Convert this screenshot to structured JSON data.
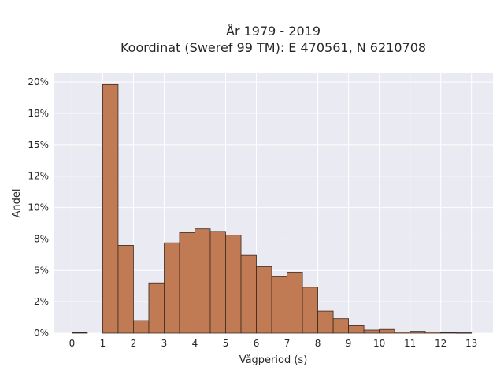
{
  "chart_data": {
    "type": "bar",
    "title_line1": "År 1979 - 2019",
    "title_line2": "Koordinat (Sweref 99 TM): E 470561, N 6210708",
    "xlabel": "Vågperiod (s)",
    "ylabel": "Andel",
    "x_tick_labels": [
      "0",
      "1",
      "2",
      "3",
      "4",
      "5",
      "6",
      "7",
      "8",
      "9",
      "10",
      "11",
      "12",
      "13"
    ],
    "y_tick_labels": [
      "0%",
      "2%",
      "5%",
      "8%",
      "10%",
      "12%",
      "15%",
      "18%",
      "20%"
    ],
    "y_tick_values": [
      0,
      2.5,
      5,
      7.5,
      10,
      12.5,
      15,
      17.5,
      20
    ],
    "ylim": [
      0,
      20.7
    ],
    "grid": true,
    "bin_width": 0.5,
    "bins": [
      {
        "start": 0.0,
        "value": 0.05
      },
      {
        "start": 0.5,
        "value": 0.0
      },
      {
        "start": 1.0,
        "value": 19.8
      },
      {
        "start": 1.5,
        "value": 7.0
      },
      {
        "start": 2.0,
        "value": 1.0
      },
      {
        "start": 2.5,
        "value": 4.0
      },
      {
        "start": 3.0,
        "value": 7.2
      },
      {
        "start": 3.5,
        "value": 8.0
      },
      {
        "start": 4.0,
        "value": 8.3
      },
      {
        "start": 4.5,
        "value": 8.1
      },
      {
        "start": 5.0,
        "value": 7.8
      },
      {
        "start": 5.5,
        "value": 6.2
      },
      {
        "start": 6.0,
        "value": 5.3
      },
      {
        "start": 6.5,
        "value": 4.5
      },
      {
        "start": 7.0,
        "value": 4.8
      },
      {
        "start": 7.5,
        "value": 3.65
      },
      {
        "start": 8.0,
        "value": 1.75
      },
      {
        "start": 8.5,
        "value": 1.15
      },
      {
        "start": 9.0,
        "value": 0.6
      },
      {
        "start": 9.5,
        "value": 0.25
      },
      {
        "start": 10.0,
        "value": 0.3
      },
      {
        "start": 10.5,
        "value": 0.1
      },
      {
        "start": 11.0,
        "value": 0.15
      },
      {
        "start": 11.5,
        "value": 0.1
      },
      {
        "start": 12.0,
        "value": 0.05
      },
      {
        "start": 12.5,
        "value": 0.03
      }
    ],
    "colors": {
      "bar_fill": "#c07a54",
      "bar_edge": "#3c2a20",
      "plot_bg": "#eaeaf2",
      "grid": "#ffffff"
    }
  }
}
